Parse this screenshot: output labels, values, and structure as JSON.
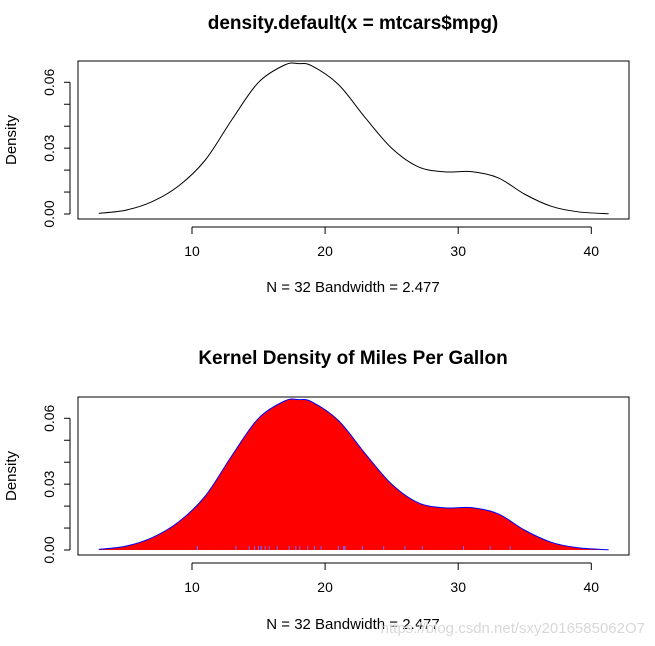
{
  "chart_data": [
    {
      "type": "line",
      "title": "density.default(x = mtcars$mpg)",
      "xlabel": "N = 32   Bandwidth = 2.477",
      "ylabel": "Density",
      "xlim": [
        2.97,
        41.33
      ],
      "ylim": [
        0,
        0.07
      ],
      "xticks": [
        10,
        20,
        30,
        40
      ],
      "xtick_labels": [
        "10",
        "20",
        "30",
        "40"
      ],
      "yticks": [
        0.0,
        0.03,
        0.06
      ],
      "ytick_labels": [
        "0.00",
        "0.03",
        "0.06"
      ],
      "yminor_ticks": [
        0.01,
        0.02,
        0.04,
        0.05
      ],
      "line_color": "#000000",
      "series": [
        {
          "name": "density",
          "x": [
            3,
            5,
            7,
            9,
            11,
            13,
            15,
            17,
            18,
            19,
            21,
            23,
            25,
            27,
            29,
            31,
            33,
            35,
            37,
            39,
            41.3
          ],
          "y": [
            0.0003,
            0.0017,
            0.0056,
            0.0128,
            0.0246,
            0.043,
            0.06,
            0.068,
            0.0685,
            0.0675,
            0.059,
            0.044,
            0.03,
            0.0215,
            0.0192,
            0.0193,
            0.0165,
            0.009,
            0.0035,
            0.001,
            0.0001
          ]
        }
      ]
    },
    {
      "type": "area",
      "title": "Kernel Density of Miles Per Gallon",
      "xlabel": "N = 32   Bandwidth = 2.477",
      "ylabel": "Density",
      "xlim": [
        2.97,
        41.33
      ],
      "ylim": [
        0,
        0.07
      ],
      "xticks": [
        10,
        20,
        30,
        40
      ],
      "xtick_labels": [
        "10",
        "20",
        "30",
        "40"
      ],
      "yticks": [
        0.0,
        0.03,
        0.06
      ],
      "ytick_labels": [
        "0.00",
        "0.03",
        "0.06"
      ],
      "yminor_ticks": [
        0.01,
        0.02,
        0.04,
        0.05
      ],
      "fill_color": "#ff0000",
      "line_color": "#0000ff",
      "rug_color": "#6b6bff",
      "series": [
        {
          "name": "density",
          "x": [
            3,
            5,
            7,
            9,
            11,
            13,
            15,
            17,
            18,
            19,
            21,
            23,
            25,
            27,
            29,
            31,
            33,
            35,
            37,
            39,
            41.3
          ],
          "y": [
            0.0003,
            0.0017,
            0.0056,
            0.0128,
            0.0246,
            0.043,
            0.06,
            0.068,
            0.0685,
            0.0675,
            0.059,
            0.044,
            0.03,
            0.0215,
            0.0192,
            0.0193,
            0.0165,
            0.009,
            0.0035,
            0.001,
            0.0001
          ]
        }
      ],
      "rug": [
        10.4,
        10.4,
        13.3,
        14.3,
        14.7,
        15.0,
        15.2,
        15.2,
        15.5,
        15.8,
        16.4,
        17.3,
        17.8,
        18.1,
        18.7,
        19.2,
        19.2,
        19.7,
        21.0,
        21.0,
        21.4,
        21.4,
        21.5,
        22.8,
        22.8,
        24.4,
        26.0,
        27.3,
        30.4,
        30.4,
        32.4,
        33.9
      ]
    }
  ],
  "watermark": "https://blog.csdn.net/sxy2016585062O7"
}
